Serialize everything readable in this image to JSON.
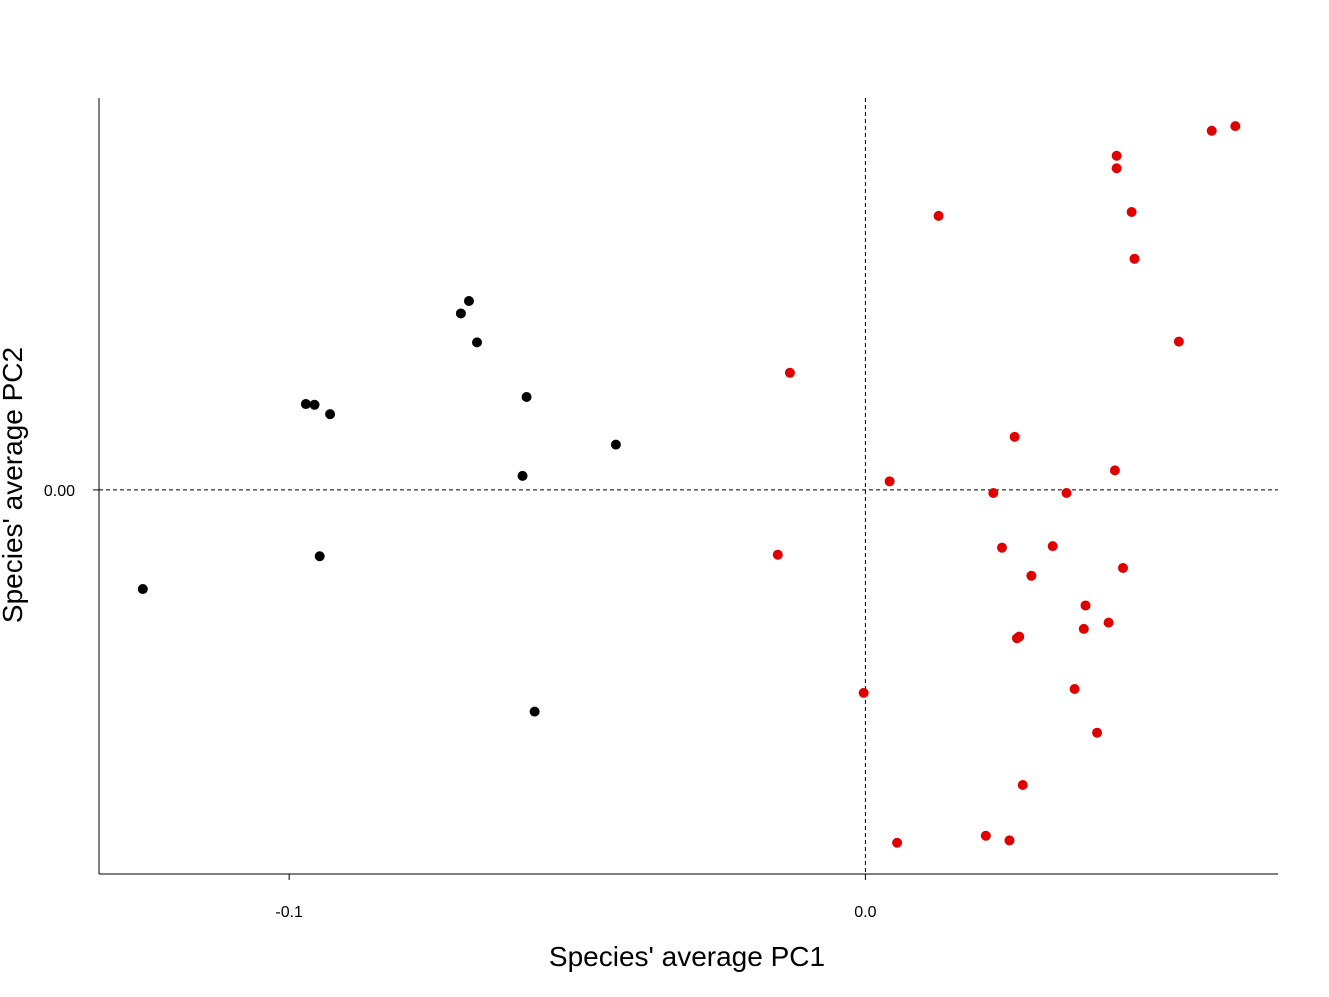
{
  "chart_data": {
    "type": "scatter",
    "title": "",
    "xlabel": "Species' average PC1",
    "ylabel": "Species' average PC2",
    "xlim": [
      -0.133,
      0.0716
    ],
    "ylim": [
      -0.0492,
      0.0502
    ],
    "x_ticks": [
      -0.1,
      0.0
    ],
    "x_tick_labels": [
      "-0.1",
      "0.0"
    ],
    "y_ticks": [
      0.0
    ],
    "y_tick_labels": [
      "0.00"
    ],
    "reference_lines": {
      "x": 0.0,
      "y": 0.0,
      "style": "dashed"
    },
    "grid": false,
    "legend": "none",
    "series": [
      {
        "color": "#000000",
        "points": [
          {
            "x": -0.1254,
            "y": -0.0127
          },
          {
            "x": -0.0971,
            "y": 0.011
          },
          {
            "x": -0.0956,
            "y": 0.0109
          },
          {
            "x": -0.0929,
            "y": 0.0097
          },
          {
            "x": -0.0947,
            "y": -0.0085
          },
          {
            "x": -0.0702,
            "y": 0.0226
          },
          {
            "x": -0.0688,
            "y": 0.0242
          },
          {
            "x": -0.0674,
            "y": 0.0189
          },
          {
            "x": -0.0588,
            "y": 0.0119
          },
          {
            "x": -0.0595,
            "y": 0.0018
          },
          {
            "x": -0.0574,
            "y": -0.0284
          },
          {
            "x": -0.0433,
            "y": 0.0058
          }
        ]
      },
      {
        "color": "#e00000",
        "points": [
          {
            "x": -0.0131,
            "y": 0.015
          },
          {
            "x": -0.0152,
            "y": -0.0083
          },
          {
            "x": -0.0003,
            "y": -0.026
          },
          {
            "x": 0.0042,
            "y": 0.0011
          },
          {
            "x": 0.0055,
            "y": -0.0452
          },
          {
            "x": 0.0127,
            "y": 0.0351
          },
          {
            "x": 0.0209,
            "y": -0.0443
          },
          {
            "x": 0.0222,
            "y": -0.0004
          },
          {
            "x": 0.0237,
            "y": -0.0074
          },
          {
            "x": 0.025,
            "y": -0.0449
          },
          {
            "x": 0.0259,
            "y": 0.0068
          },
          {
            "x": 0.0263,
            "y": -0.019
          },
          {
            "x": 0.0267,
            "y": -0.0188
          },
          {
            "x": 0.0273,
            "y": -0.0378
          },
          {
            "x": 0.0288,
            "y": -0.011
          },
          {
            "x": 0.0325,
            "y": -0.0072
          },
          {
            "x": 0.0349,
            "y": -0.0004
          },
          {
            "x": 0.0363,
            "y": -0.0255
          },
          {
            "x": 0.0379,
            "y": -0.0178
          },
          {
            "x": 0.0382,
            "y": -0.0148
          },
          {
            "x": 0.0402,
            "y": -0.0311
          },
          {
            "x": 0.0422,
            "y": -0.017
          },
          {
            "x": 0.0433,
            "y": 0.0025
          },
          {
            "x": 0.0436,
            "y": 0.0428
          },
          {
            "x": 0.0436,
            "y": 0.0412
          },
          {
            "x": 0.0447,
            "y": -0.01
          },
          {
            "x": 0.0462,
            "y": 0.0356
          },
          {
            "x": 0.0467,
            "y": 0.0296
          },
          {
            "x": 0.0544,
            "y": 0.019
          },
          {
            "x": 0.0601,
            "y": 0.046
          },
          {
            "x": 0.0642,
            "y": 0.0466
          }
        ]
      }
    ]
  }
}
